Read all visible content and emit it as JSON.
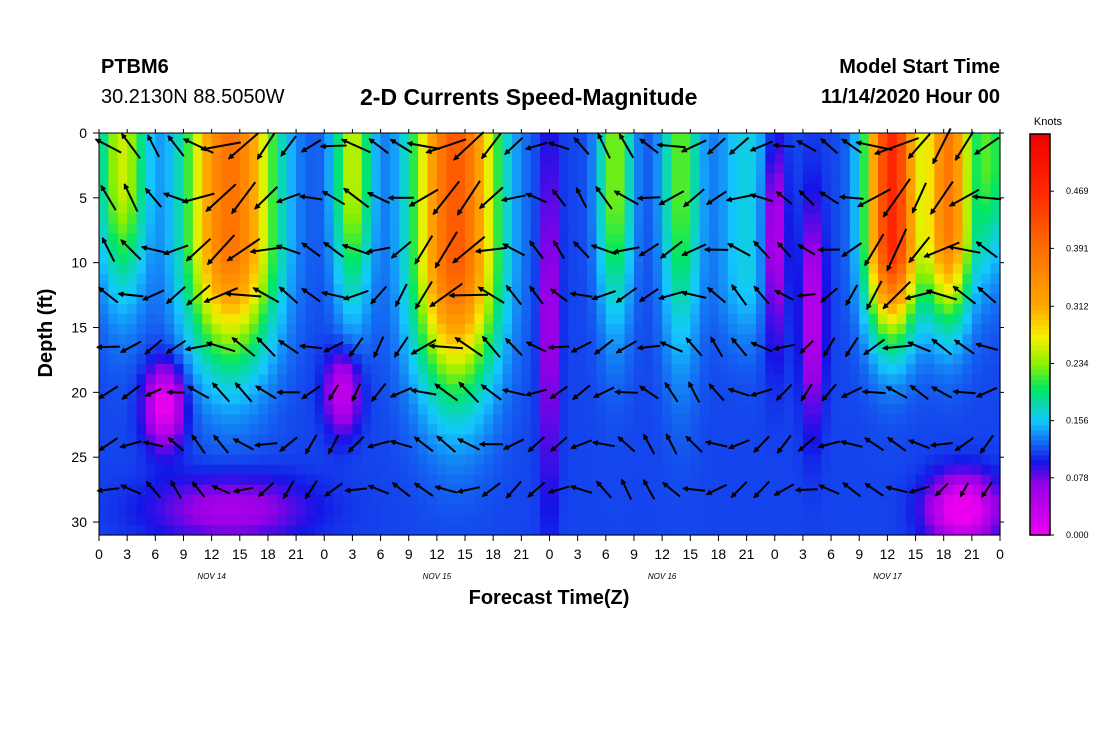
{
  "header": {
    "station_id": "PTBM6",
    "station_location": "30.2130N 88.5050W",
    "title": "2-D Currents Speed-Magnitude",
    "model_start_label": "Model Start Time",
    "model_start_value": "11/14/2020 Hour 00"
  },
  "chart_data": {
    "type": "heatmap",
    "title": "2-D Currents Speed-Magnitude",
    "xlabel": "Forecast Time(Z)",
    "ylabel": "Depth (ft)",
    "xlim": [
      0,
      96
    ],
    "ylim": [
      0,
      31
    ],
    "x_tick_labels": [
      "0",
      "3",
      "6",
      "9",
      "12",
      "15",
      "18",
      "21",
      "0",
      "3",
      "6",
      "9",
      "12",
      "15",
      "18",
      "21",
      "0",
      "3",
      "6",
      "9",
      "12",
      "15",
      "18",
      "21",
      "0",
      "3",
      "6",
      "9",
      "12",
      "15",
      "18",
      "21",
      "0"
    ],
    "y_ticks": [
      0,
      5,
      10,
      15,
      20,
      25,
      30
    ],
    "day_labels": [
      {
        "label": "NOV 14",
        "hour": 12
      },
      {
        "label": "NOV 15",
        "hour": 36
      },
      {
        "label": "NOV 16",
        "hour": 60
      },
      {
        "label": "NOV 17",
        "hour": 84
      }
    ],
    "colorbar": {
      "unit": "Knots",
      "min": 0.0,
      "max": 0.547,
      "ticks": [
        "0.000",
        "0.078",
        "0.156",
        "0.234",
        "0.312",
        "0.391",
        "0.469"
      ],
      "tick_values": [
        0.0,
        0.078,
        0.156,
        0.234,
        0.312,
        0.391,
        0.469
      ]
    },
    "speed_peaks": [
      {
        "hour": 14,
        "depth": 5,
        "speed": 0.36
      },
      {
        "hour": 38,
        "depth": 5,
        "speed": 0.39
      },
      {
        "hour": 84,
        "depth": 3,
        "speed": 0.44
      },
      {
        "hour": 90,
        "depth": 5,
        "speed": 0.36
      }
    ],
    "speed_minima": [
      {
        "hour": 7,
        "depth": 21,
        "speed": 0.03
      },
      {
        "hour": 26,
        "depth": 20,
        "speed": 0.05
      },
      {
        "hour": 48,
        "depth": 28,
        "speed": 0.05
      },
      {
        "hour": 72,
        "depth": 6,
        "speed": 0.04
      },
      {
        "hour": 93,
        "depth": 29,
        "speed": 0.01
      }
    ]
  }
}
